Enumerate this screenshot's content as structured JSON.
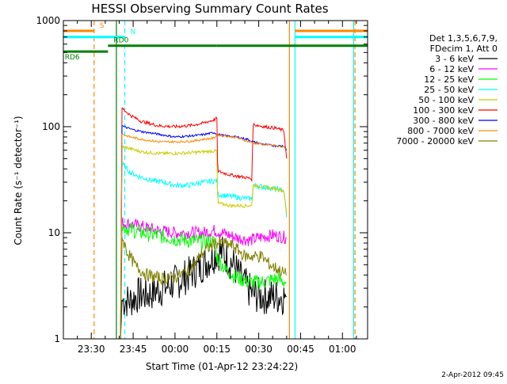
{
  "chart_data": {
    "type": "line",
    "title": "HESSI Observing Summary Count Rates",
    "xlabel": "Start Time (01-Apr-12 23:24:22)",
    "ylabel": "Count Rate (s⁻¹ detector⁻¹)",
    "y_scale": "log",
    "ylim": [
      1,
      1000
    ],
    "y_ticks": [
      {
        "value": 1,
        "label": "1"
      },
      {
        "value": 10,
        "label": "10"
      },
      {
        "value": 100,
        "label": "100"
      },
      {
        "value": 1000,
        "label": "1000"
      }
    ],
    "xlim_minutes": [
      -40,
      69
    ],
    "x_ticks": [
      {
        "minute": -30,
        "label": "23:30"
      },
      {
        "minute": -15,
        "label": "23:45"
      },
      {
        "minute": 0,
        "label": "00:00"
      },
      {
        "minute": 15,
        "label": "00:15"
      },
      {
        "minute": 30,
        "label": "00:30"
      },
      {
        "minute": 45,
        "label": "00:45"
      },
      {
        "minute": 60,
        "label": "01:00"
      }
    ],
    "legend_header": [
      "Det 1,3,5,6,7,9,",
      "FDecim 1, Att 0"
    ],
    "legend_position": "right",
    "footer_date": "2-Apr-2012 09:45",
    "series": [
      {
        "name": "3 - 6 keV",
        "color": "#000000",
        "noise": 0.35,
        "points": [
          [
            -19.5,
            1
          ],
          [
            -19,
            2.3
          ],
          [
            -16,
            2.3
          ],
          [
            -13,
            2.6
          ],
          [
            -10,
            2.6
          ],
          [
            -6,
            2.9
          ],
          [
            -3,
            3.1
          ],
          [
            2,
            3.6
          ],
          [
            6,
            4.2
          ],
          [
            9,
            4.8
          ],
          [
            12,
            5.5
          ],
          [
            15,
            6.5
          ],
          [
            17,
            6.5
          ],
          [
            21,
            5
          ],
          [
            24,
            3.5
          ],
          [
            28,
            2.6
          ],
          [
            33,
            2.5
          ],
          [
            37,
            2.5
          ],
          [
            40,
            2.5
          ]
        ]
      },
      {
        "name": "6 - 12 keV",
        "color": "#ff00ff",
        "noise": 0.12,
        "points": [
          [
            -19.5,
            1
          ],
          [
            -19,
            12.5
          ],
          [
            -16,
            12
          ],
          [
            -12,
            11.5
          ],
          [
            -6,
            10.5
          ],
          [
            0,
            10
          ],
          [
            6,
            10
          ],
          [
            10,
            10
          ],
          [
            14,
            10.5
          ],
          [
            17,
            10
          ],
          [
            22,
            9
          ],
          [
            27,
            8.5
          ],
          [
            30,
            9
          ],
          [
            35,
            9.5
          ],
          [
            40,
            9
          ]
        ]
      },
      {
        "name": "12 - 25 keV",
        "color": "#00ff00",
        "noise": 0.15,
        "points": [
          [
            -19.5,
            1
          ],
          [
            -19,
            11.5
          ],
          [
            -15,
            10.5
          ],
          [
            -10,
            9.8
          ],
          [
            -4,
            9.2
          ],
          [
            0,
            8.8
          ],
          [
            6,
            8.4
          ],
          [
            10,
            8.2
          ],
          [
            14,
            8.2
          ],
          [
            15,
            6
          ],
          [
            18,
            4.5
          ],
          [
            22,
            3.8
          ],
          [
            27,
            3.4
          ],
          [
            30,
            3.4
          ],
          [
            33,
            3.5
          ],
          [
            36,
            3.7
          ],
          [
            40,
            3.4
          ]
        ]
      },
      {
        "name": "25 - 50 keV",
        "color": "#00ffff",
        "noise": 0.05,
        "points": [
          [
            -19.5,
            1
          ],
          [
            -19,
            45
          ],
          [
            -16,
            37
          ],
          [
            -13,
            34
          ],
          [
            -8,
            31
          ],
          [
            -4,
            30
          ],
          [
            0,
            28
          ],
          [
            5,
            28
          ],
          [
            10,
            30
          ],
          [
            15,
            31
          ],
          [
            15.3,
            23
          ],
          [
            20,
            22
          ],
          [
            26,
            21
          ],
          [
            27.5,
            21
          ],
          [
            28,
            28
          ],
          [
            32,
            27
          ],
          [
            36,
            26
          ],
          [
            39,
            25
          ],
          [
            40,
            14
          ]
        ]
      },
      {
        "name": "50 - 100 keV",
        "color": "#cccc00",
        "noise": 0.03,
        "points": [
          [
            -19.5,
            1
          ],
          [
            -19,
            65
          ],
          [
            -16,
            62
          ],
          [
            -12,
            58
          ],
          [
            -6,
            56
          ],
          [
            0,
            56
          ],
          [
            6,
            57
          ],
          [
            10,
            58
          ],
          [
            14,
            59
          ],
          [
            15,
            59
          ],
          [
            15.3,
            19
          ],
          [
            20,
            18
          ],
          [
            26,
            18
          ],
          [
            27.5,
            18
          ],
          [
            28,
            28
          ],
          [
            32,
            27
          ],
          [
            36,
            26
          ],
          [
            39,
            25
          ],
          [
            40,
            15
          ]
        ]
      },
      {
        "name": "100 - 300 keV",
        "color": "#ff0000",
        "noise": 0.03,
        "points": [
          [
            -19.5,
            1
          ],
          [
            -19,
            150
          ],
          [
            -16,
            128
          ],
          [
            -12,
            112
          ],
          [
            -6,
            102
          ],
          [
            0,
            100
          ],
          [
            6,
            103
          ],
          [
            10,
            108
          ],
          [
            14,
            116
          ],
          [
            15,
            120
          ],
          [
            15.3,
            38
          ],
          [
            20,
            35
          ],
          [
            26,
            33
          ],
          [
            27.5,
            32
          ],
          [
            28,
            105
          ],
          [
            32,
            100
          ],
          [
            36,
            97
          ],
          [
            39,
            92
          ],
          [
            40,
            50
          ]
        ]
      },
      {
        "name": "300 - 800 keV",
        "color": "#0000ff",
        "noise": 0.02,
        "points": [
          [
            -19.5,
            1
          ],
          [
            -19,
            102
          ],
          [
            -16,
            95
          ],
          [
            -12,
            90
          ],
          [
            -6,
            85
          ],
          [
            0,
            80
          ],
          [
            6,
            82
          ],
          [
            10,
            84
          ],
          [
            14,
            88
          ],
          [
            15,
            85
          ],
          [
            18,
            82
          ],
          [
            22,
            80
          ],
          [
            26,
            76
          ],
          [
            28,
            72
          ],
          [
            32,
            68
          ],
          [
            36,
            66
          ],
          [
            39,
            66
          ],
          [
            40,
            60
          ]
        ]
      },
      {
        "name": "800 - 7000 keV",
        "color": "#ff8800",
        "noise": 0.02,
        "points": [
          [
            -19.5,
            1
          ],
          [
            -19,
            85
          ],
          [
            -16,
            80
          ],
          [
            -12,
            76
          ],
          [
            -6,
            72
          ],
          [
            0,
            72
          ],
          [
            6,
            73
          ],
          [
            10,
            76
          ],
          [
            14,
            78
          ],
          [
            15,
            84
          ],
          [
            18,
            82
          ],
          [
            22,
            79
          ],
          [
            26,
            73
          ],
          [
            28,
            70
          ],
          [
            32,
            68
          ],
          [
            36,
            66
          ],
          [
            39,
            64
          ],
          [
            40,
            62
          ]
        ]
      },
      {
        "name": "7000 - 20000 keV",
        "color": "#808000",
        "noise": 0.12,
        "points": [
          [
            -19.5,
            1
          ],
          [
            -19,
            9
          ],
          [
            -17,
            6.5
          ],
          [
            -14,
            4.8
          ],
          [
            -10,
            4
          ],
          [
            -5,
            3.7
          ],
          [
            0,
            3.8
          ],
          [
            5,
            4.4
          ],
          [
            10,
            6.5
          ],
          [
            14,
            8
          ],
          [
            17,
            8
          ],
          [
            21,
            7.5
          ],
          [
            25,
            6
          ],
          [
            28,
            6
          ],
          [
            31,
            6
          ],
          [
            34,
            5
          ],
          [
            37,
            4.5
          ],
          [
            40,
            4
          ]
        ]
      }
    ],
    "markers": [
      {
        "minute": -29,
        "color": "#ff8800",
        "style": "dashed"
      },
      {
        "minute": -18,
        "color": "#00ffff",
        "style": "dashed"
      },
      {
        "minute": -21,
        "color": "#008000",
        "style": "solid"
      },
      {
        "minute": 41,
        "color": "#ff8800",
        "style": "solid"
      },
      {
        "minute": 43,
        "color": "#00ffff",
        "style": "solid"
      },
      {
        "minute": 64,
        "color": "#00ffff",
        "style": "solid"
      },
      {
        "minute": 64.5,
        "color": "#ff8800",
        "style": "dashed"
      }
    ],
    "flag_bars": [
      {
        "label": "S",
        "color": "#ff8800",
        "value": 800,
        "segments": [
          [
            -40,
            -29
          ],
          [
            43,
            69
          ]
        ]
      },
      {
        "label": "N",
        "color": "#00ffff",
        "value": 700,
        "segments": [
          [
            -40,
            -18
          ],
          [
            43,
            69
          ]
        ]
      },
      {
        "label": "RD0",
        "color": "#008000",
        "value": 580,
        "segments": [
          [
            -24,
            15
          ],
          [
            15,
            26
          ],
          [
            26,
            69
          ]
        ]
      },
      {
        "label": "RD6",
        "color": "#008000",
        "value": 510,
        "segments": [
          [
            -40,
            -24
          ]
        ]
      }
    ]
  }
}
